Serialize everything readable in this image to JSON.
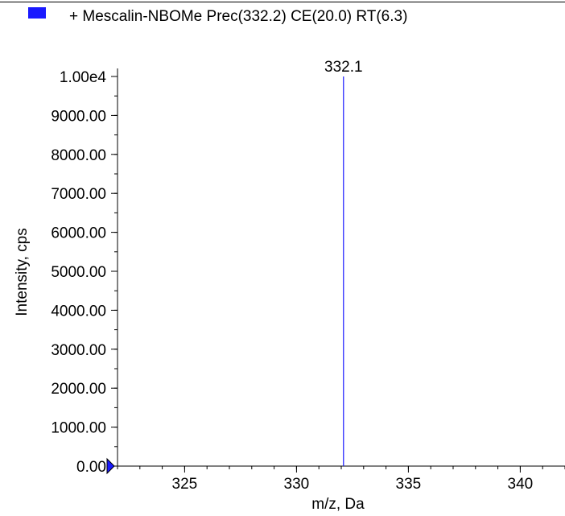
{
  "legend": {
    "label": "+ Mescalin-NBOMe Prec(332.2) CE(20.0) RT(6.3)",
    "swatch_color": "#1a1aff"
  },
  "chart_data": {
    "type": "bar",
    "title": "",
    "xlabel": "m/z, Da",
    "ylabel": "Intensity, cps",
    "xlim": [
      322,
      342
    ],
    "ylim": [
      0,
      10000
    ],
    "x_ticks": [
      325,
      330,
      335,
      340
    ],
    "x_minor_step": 1,
    "y_ticks": [
      0,
      1000,
      2000,
      3000,
      4000,
      5000,
      6000,
      7000,
      8000,
      9000,
      10000
    ],
    "y_tick_labels": [
      "0.00",
      "1000.00",
      "2000.00",
      "3000.00",
      "4000.00",
      "5000.00",
      "6000.00",
      "7000.00",
      "8000.00",
      "9000.00",
      "1.00e4"
    ],
    "y_minor_step": 500,
    "grid": false,
    "series": [
      {
        "x": [
          332.1
        ],
        "values": [
          10000
        ],
        "color": "#1a1aff",
        "peak_labels": [
          "332.1"
        ]
      }
    ],
    "baseline_marker_color": "#1a1aff"
  }
}
